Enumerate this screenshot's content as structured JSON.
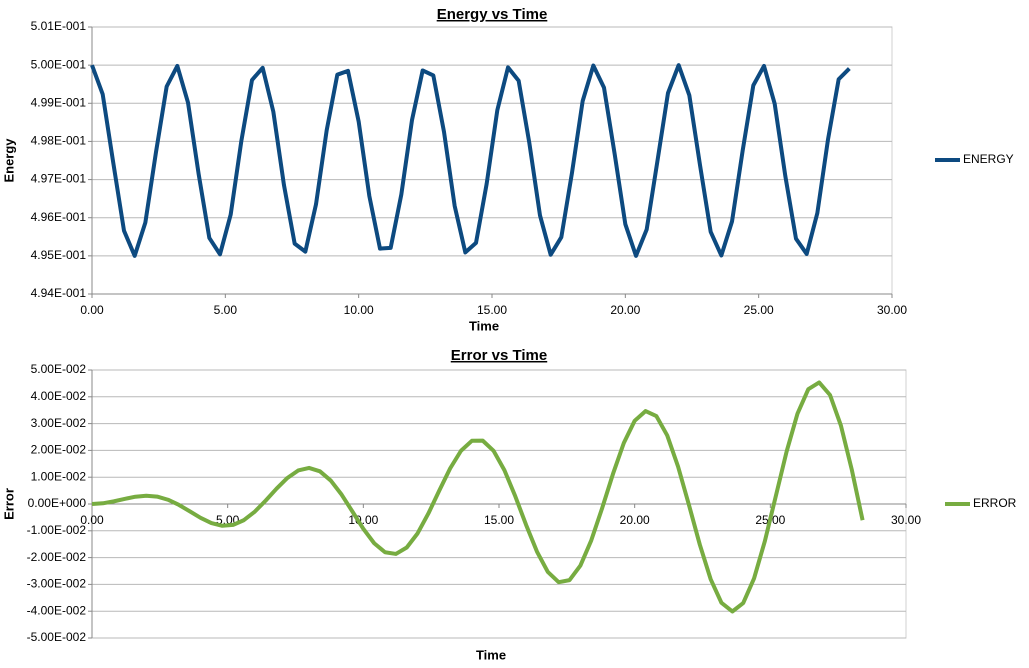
{
  "chart_data": [
    {
      "type": "line",
      "title": "Energy vs Time",
      "x_label": "Time",
      "y_label": "Energy",
      "x": [
        0,
        0.4,
        0.8,
        1.2,
        1.6,
        2.0,
        2.4,
        2.8,
        3.2,
        3.6,
        4.0,
        4.4,
        4.8,
        5.2,
        5.6,
        6.0,
        6.4,
        6.8,
        7.2,
        7.6,
        8.0,
        8.4,
        8.8,
        9.2,
        9.6,
        10.0,
        10.4,
        10.8,
        11.2,
        11.6,
        12.0,
        12.4,
        12.8,
        13.2,
        13.6,
        14.0,
        14.4,
        14.8,
        15.2,
        15.6,
        16.0,
        16.4,
        16.8,
        17.2,
        17.6,
        18.0,
        18.4,
        18.8,
        19.2,
        19.6,
        20.0,
        20.4,
        20.8,
        21.2,
        21.6,
        22.0,
        22.4,
        22.8,
        23.2,
        23.6,
        24.0,
        24.4,
        24.8,
        25.2,
        25.6,
        26.0,
        26.4,
        26.8,
        27.2,
        27.6,
        28.0,
        28.4
      ],
      "series": [
        {
          "name": "ENERGY",
          "color": "#0d4a80",
          "values": [
            0.5,
            0.49924,
            0.49743,
            0.49566,
            0.495,
            0.49587,
            0.49772,
            0.49944,
            0.49998,
            0.49902,
            0.49714,
            0.49547,
            0.49504,
            0.49608,
            0.49801,
            0.49961,
            0.49993,
            0.49878,
            0.49685,
            0.49532,
            0.49511,
            0.49635,
            0.49829,
            0.49975,
            0.49985,
            0.49852,
            0.49657,
            0.49519,
            0.49521,
            0.49661,
            0.49856,
            0.49986,
            0.49973,
            0.49825,
            0.49631,
            0.49509,
            0.49534,
            0.49689,
            0.49882,
            0.49994,
            0.49959,
            0.49796,
            0.49606,
            0.49503,
            0.49549,
            0.49718,
            0.49906,
            0.49999,
            0.49941,
            0.49767,
            0.49583,
            0.495,
            0.49569,
            0.49747,
            0.49927,
            0.5,
            0.49921,
            0.49738,
            0.49563,
            0.49501,
            0.4959,
            0.49776,
            0.49947,
            0.49998,
            0.49899,
            0.49709,
            0.49545,
            0.49505,
            0.49612,
            0.49805,
            0.49963,
            0.49991
          ]
        }
      ],
      "xlim": [
        0,
        30
      ],
      "xticks": [
        {
          "value": 0,
          "label": "0.00"
        },
        {
          "value": 5,
          "label": "5.00"
        },
        {
          "value": 10,
          "label": "10.00"
        },
        {
          "value": 15,
          "label": "15.00"
        },
        {
          "value": 20,
          "label": "20.00"
        },
        {
          "value": 25,
          "label": "25.00"
        },
        {
          "value": 30,
          "label": "30.00"
        }
      ],
      "ylim": [
        0.494,
        0.501
      ],
      "yticks": [
        {
          "value": 0.494,
          "label": "4.94E-001"
        },
        {
          "value": 0.495,
          "label": "4.95E-001"
        },
        {
          "value": 0.496,
          "label": "4.96E-001"
        },
        {
          "value": 0.497,
          "label": "4.97E-001"
        },
        {
          "value": 0.498,
          "label": "4.98E-001"
        },
        {
          "value": 0.499,
          "label": "4.99E-001"
        },
        {
          "value": 0.5,
          "label": "5.00E-001"
        },
        {
          "value": 0.501,
          "label": "5.01E-001"
        }
      ],
      "grid": true
    },
    {
      "type": "line",
      "title": "Error vs Time",
      "x_label": "Time",
      "y_label": "Error",
      "x": [
        0,
        0.4,
        0.8,
        1.2,
        1.6,
        2.0,
        2.4,
        2.8,
        3.2,
        3.6,
        4.0,
        4.4,
        4.8,
        5.2,
        5.6,
        6.0,
        6.4,
        6.8,
        7.2,
        7.6,
        8.0,
        8.4,
        8.8,
        9.2,
        9.6,
        10.0,
        10.4,
        10.8,
        11.2,
        11.6,
        12.0,
        12.4,
        12.8,
        13.2,
        13.6,
        14.0,
        14.4,
        14.8,
        15.2,
        15.6,
        16.0,
        16.4,
        16.8,
        17.2,
        17.6,
        18.0,
        18.4,
        18.8,
        19.2,
        19.6,
        20.0,
        20.4,
        20.8,
        21.2,
        21.6,
        22.0,
        22.4,
        22.8,
        23.2,
        23.6,
        24.0,
        24.4,
        24.8,
        25.2,
        25.6,
        26.0,
        26.4,
        26.8,
        27.2,
        27.6,
        28.0,
        28.4
      ],
      "series": [
        {
          "name": "ERROR",
          "color": "#77ac41",
          "values": [
            0,
            0.00026,
            0.00098,
            0.0019,
            0.00272,
            0.00309,
            0.00276,
            0.00159,
            -0.00032,
            -0.00271,
            -0.00515,
            -0.00712,
            -0.00813,
            -0.00781,
            -0.00601,
            -0.00285,
            0.00127,
            0.00571,
            0.00971,
            0.01251,
            0.01346,
            0.0122,
            0.00875,
            0.00349,
            -0.00284,
            -0.00925,
            -0.01464,
            -0.01801,
            -0.01864,
            -0.01623,
            -0.01095,
            -0.00349,
            0.00504,
            0.01329,
            0.01987,
            0.02358,
            0.02365,
            0.01985,
            0.01259,
            0.00288,
            -0.00783,
            -0.01779,
            -0.02535,
            -0.02917,
            -0.0284,
            -0.02298,
            -0.01359,
            -0.0016,
            0.01121,
            0.02276,
            0.03104,
            0.03467,
            0.03282,
            0.02558,
            0.01394,
            -0.00033,
            -0.01513,
            -0.02804,
            -0.03689,
            -0.04011,
            -0.03695,
            -0.02778,
            -0.01378,
            0.00287,
            0.01957,
            0.03371,
            0.04282,
            0.04535,
            0.04067,
            0.02931,
            0.01289,
            -0.00604
          ]
        }
      ],
      "xlim": [
        0,
        30
      ],
      "xticks": [
        {
          "value": 0,
          "label": "0.00"
        },
        {
          "value": 5,
          "label": "5.00"
        },
        {
          "value": 10,
          "label": "10.00"
        },
        {
          "value": 15,
          "label": "15.00"
        },
        {
          "value": 20,
          "label": "20.00"
        },
        {
          "value": 25,
          "label": "25.00"
        },
        {
          "value": 30,
          "label": "30.00"
        }
      ],
      "ylim": [
        -0.05,
        0.05
      ],
      "yticks": [
        {
          "value": -0.05,
          "label": "-5.00E-002"
        },
        {
          "value": -0.04,
          "label": "-4.00E-002"
        },
        {
          "value": -0.03,
          "label": "-3.00E-002"
        },
        {
          "value": -0.02,
          "label": "-2.00E-002"
        },
        {
          "value": -0.01,
          "label": "-1.00E-002"
        },
        {
          "value": 0,
          "label": "0.00E+000"
        },
        {
          "value": 0.01,
          "label": "1.00E-002"
        },
        {
          "value": 0.02,
          "label": "2.00E-002"
        },
        {
          "value": 0.03,
          "label": "3.00E-002"
        },
        {
          "value": 0.04,
          "label": "4.00E-002"
        },
        {
          "value": 0.05,
          "label": "5.00E-002"
        }
      ],
      "grid": true
    }
  ]
}
